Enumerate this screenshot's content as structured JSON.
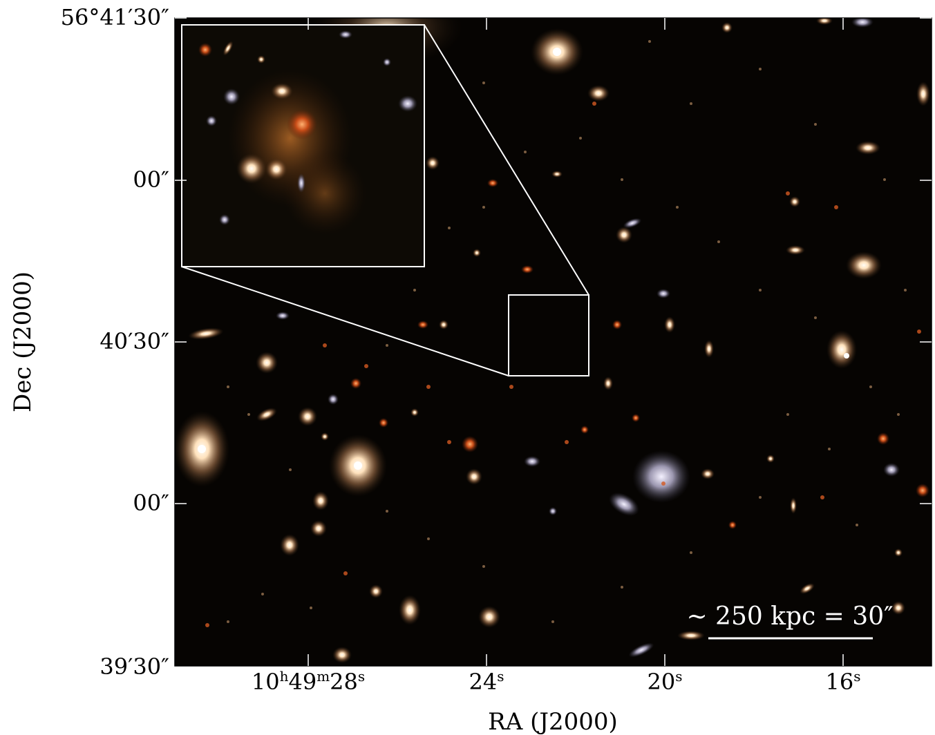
{
  "axes": {
    "xlabel": "RA (J2000)",
    "ylabel": "Dec (J2000)",
    "xticks": [
      {
        "pre": "10",
        "h": "h",
        "mid": "49",
        "m": "m",
        "num": "28",
        "s": "s"
      },
      {
        "pre": "",
        "h": "",
        "mid": "",
        "m": "",
        "num": "24",
        "s": "s"
      },
      {
        "pre": "",
        "h": "",
        "mid": "",
        "m": "",
        "num": "20",
        "s": "s"
      },
      {
        "pre": "",
        "h": "",
        "mid": "",
        "m": "",
        "num": "16",
        "s": "s"
      }
    ],
    "yticks": [
      "56°41′30″",
      "00″",
      "40′30″",
      "00″",
      "39′30″"
    ]
  },
  "scale_bar": {
    "label": "~ 250 kpc = 30″"
  },
  "colors": {
    "sky": "#060402",
    "galaxy_warm": "#f3c9a0",
    "galaxy_red": "#d4561c",
    "frame": "#ffffff"
  }
}
